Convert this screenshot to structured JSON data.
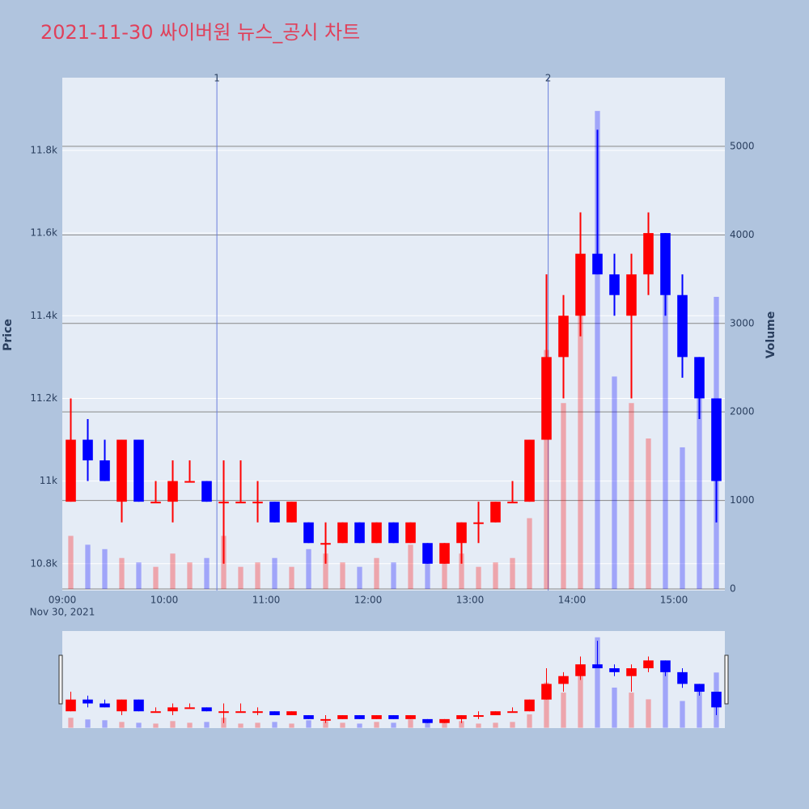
{
  "chart_data": {
    "type": "candlestick",
    "title": "2021-11-30 싸이버원 뉴스_공시 차트",
    "y_label": "Price",
    "y2_label": "Volume",
    "date_label": "Nov 30, 2021",
    "up_color": "#ff0000",
    "down_color": "#0000ff",
    "x": [
      "09:00",
      "09:10",
      "09:20",
      "09:30",
      "09:40",
      "09:50",
      "10:00",
      "10:10",
      "10:20",
      "10:30",
      "10:40",
      "10:50",
      "11:00",
      "11:10",
      "11:20",
      "11:30",
      "11:40",
      "11:50",
      "12:00",
      "12:10",
      "12:20",
      "12:30",
      "12:40",
      "12:50",
      "13:00",
      "13:10",
      "13:20",
      "13:30",
      "13:40",
      "13:50",
      "14:00",
      "14:10",
      "14:20",
      "14:30",
      "14:40",
      "14:50",
      "15:00",
      "15:10",
      "15:20"
    ],
    "open": [
      10950,
      11100,
      11050,
      10950,
      11100,
      10950,
      10950,
      11000,
      11000,
      10950,
      10950,
      10950,
      10950,
      10900,
      10900,
      10850,
      10850,
      10900,
      10850,
      10900,
      10850,
      10850,
      10800,
      10850,
      10900,
      10900,
      10950,
      10950,
      11100,
      11300,
      11400,
      11550,
      11500,
      11400,
      11500,
      11600,
      11450,
      11300,
      11200
    ],
    "high": [
      11200,
      11150,
      11100,
      11100,
      11100,
      11000,
      11050,
      11050,
      11000,
      11050,
      11050,
      11000,
      10950,
      10950,
      10900,
      10900,
      10900,
      10900,
      10900,
      10900,
      10900,
      10850,
      10850,
      10900,
      10950,
      10950,
      11000,
      11100,
      11500,
      11450,
      11650,
      11850,
      11550,
      11550,
      11650,
      11600,
      11500,
      11300,
      11200
    ],
    "low": [
      10950,
      11000,
      11000,
      10900,
      10950,
      10950,
      10900,
      11000,
      10950,
      10800,
      10950,
      10900,
      10900,
      10900,
      10850,
      10800,
      10850,
      10850,
      10850,
      10850,
      10850,
      10800,
      10800,
      10800,
      10850,
      10900,
      10950,
      10950,
      11100,
      11200,
      11350,
      11500,
      11400,
      11200,
      11450,
      11400,
      11250,
      11150,
      10900
    ],
    "close": [
      11100,
      11050,
      11000,
      11100,
      10950,
      10950,
      11000,
      11000,
      10950,
      10950,
      10950,
      10950,
      10900,
      10950,
      10850,
      10850,
      10900,
      10850,
      10900,
      10850,
      10900,
      10800,
      10850,
      10900,
      10900,
      10950,
      10950,
      11100,
      11300,
      11400,
      11550,
      11500,
      11450,
      11500,
      11600,
      11450,
      11300,
      11200,
      11000
    ],
    "volume": [
      600,
      500,
      450,
      350,
      300,
      250,
      400,
      300,
      350,
      600,
      250,
      300,
      350,
      250,
      450,
      400,
      300,
      250,
      350,
      300,
      500,
      450,
      300,
      400,
      250,
      300,
      350,
      800,
      2700,
      2100,
      3200,
      5400,
      2400,
      2100,
      1700,
      3700,
      1600,
      2300,
      3300
    ],
    "xlim": [
      "09:00",
      "15:30"
    ],
    "xticks": [
      "09:00",
      "10:00",
      "11:00",
      "12:00",
      "13:00",
      "14:00",
      "15:00"
    ],
    "ylim": [
      10735,
      11976
    ],
    "yticks": [
      {
        "value": 10800,
        "label": "10.8k"
      },
      {
        "value": 11000,
        "label": "11k"
      },
      {
        "value": 11200,
        "label": "11.2k"
      },
      {
        "value": 11400,
        "label": "11.4k"
      },
      {
        "value": 11600,
        "label": "11.6k"
      },
      {
        "value": 11800,
        "label": "11.8k"
      }
    ],
    "y2lim": [
      -18,
      5776
    ],
    "y2ticks": [
      0,
      1000,
      2000,
      3000,
      4000,
      5000
    ],
    "annotations": [
      {
        "x": "10:31",
        "label": "1"
      },
      {
        "x": "13:46",
        "label": "2"
      }
    ]
  }
}
